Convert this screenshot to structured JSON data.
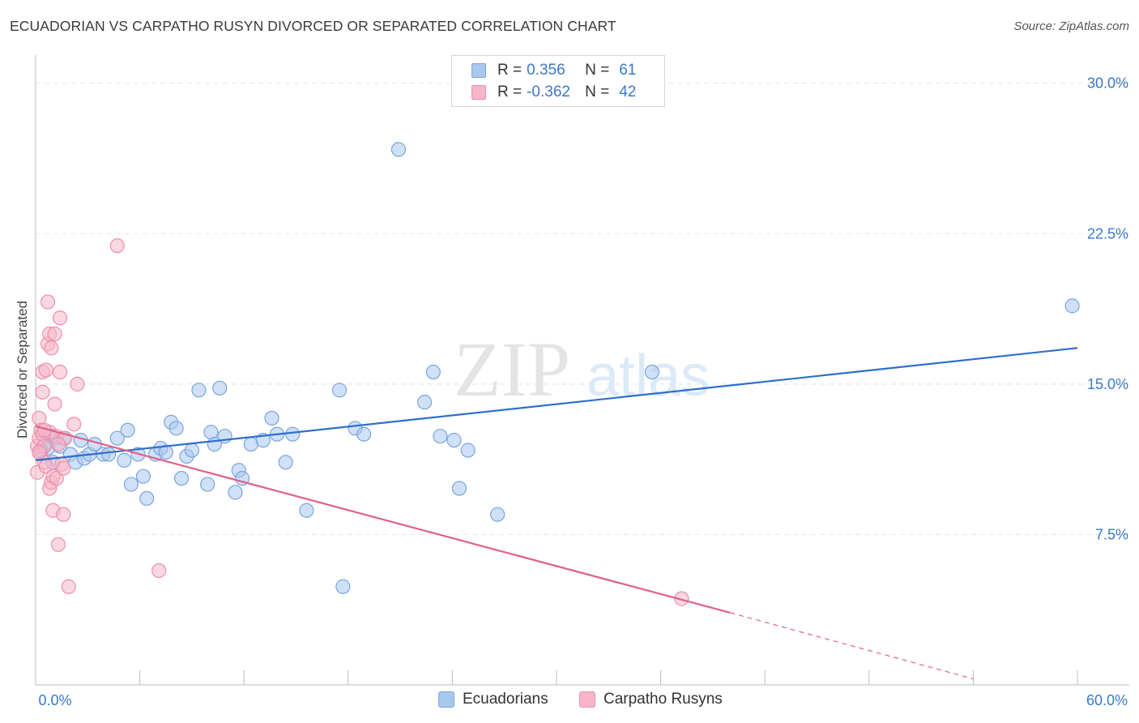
{
  "header": {
    "title": "ECUADORIAN VS CARPATHO RUSYN DIVORCED OR SEPARATED CORRELATION CHART",
    "source": "Source: ZipAtlas.com"
  },
  "legend": {
    "rows": [
      {
        "r_label": "R =",
        "r_value": "0.356",
        "n_label": "N =",
        "n_value": "61"
      },
      {
        "r_label": "R =",
        "r_value": "-0.362",
        "n_label": "N =",
        "n_value": "42"
      }
    ]
  },
  "bottom_legend": [
    "Ecuadorians",
    "Carpatho Rusyns"
  ],
  "watermark": {
    "zip": "ZIP",
    "atlas": "atlas"
  },
  "colors": {
    "blue_fill": "#a9c7ef",
    "blue_stroke": "#7aa5dc",
    "blue_line": "#2f6fcc",
    "pink_fill": "#f6b6c9",
    "pink_stroke": "#ee8eab",
    "pink_line": "#e0608a",
    "axis_label": "#3a78c8",
    "grid": "#e3e3e3"
  },
  "chart_data": {
    "type": "scatter",
    "title": "ECUADORIAN VS CARPATHO RUSYN DIVORCED OR SEPARATED CORRELATION CHART",
    "xlabel": "",
    "ylabel": "Divorced or Separated",
    "xlim": [
      0,
      60
    ],
    "ylim": [
      0,
      31
    ],
    "x_tick_labels": [
      "0.0%",
      "60.0%"
    ],
    "y_ticks": [
      7.5,
      15.0,
      22.5,
      30.0
    ],
    "y_tick_labels": [
      "7.5%",
      "15.0%",
      "22.5%",
      "30.0%"
    ],
    "grid": true,
    "legend_position": "top-center",
    "series": [
      {
        "name": "Ecuadorians",
        "r": 0.356,
        "n": 61,
        "trend": {
          "x": [
            0,
            60
          ],
          "y": [
            11.2,
            16.8
          ]
        },
        "points": [
          [
            0.5,
            12.0
          ],
          [
            0.7,
            11.8
          ],
          [
            0.9,
            12.4
          ],
          [
            1.0,
            11.1
          ],
          [
            1.1,
            12.3
          ],
          [
            1.4,
            11.9
          ],
          [
            1.6,
            12.3
          ],
          [
            2.0,
            11.5
          ],
          [
            2.3,
            11.1
          ],
          [
            2.6,
            12.2
          ],
          [
            2.8,
            11.3
          ],
          [
            3.1,
            11.5
          ],
          [
            3.4,
            12.0
          ],
          [
            3.9,
            11.5
          ],
          [
            4.2,
            11.5
          ],
          [
            4.7,
            12.3
          ],
          [
            5.1,
            11.2
          ],
          [
            5.3,
            12.7
          ],
          [
            5.5,
            10.0
          ],
          [
            5.9,
            11.5
          ],
          [
            6.2,
            10.4
          ],
          [
            6.4,
            9.3
          ],
          [
            6.9,
            11.5
          ],
          [
            7.2,
            11.8
          ],
          [
            7.5,
            11.6
          ],
          [
            7.8,
            13.1
          ],
          [
            8.1,
            12.8
          ],
          [
            8.4,
            10.3
          ],
          [
            8.7,
            11.4
          ],
          [
            9.0,
            11.7
          ],
          [
            9.4,
            14.7
          ],
          [
            9.9,
            10.0
          ],
          [
            10.1,
            12.6
          ],
          [
            10.3,
            12.0
          ],
          [
            10.6,
            14.8
          ],
          [
            10.9,
            12.4
          ],
          [
            11.5,
            9.6
          ],
          [
            11.7,
            10.7
          ],
          [
            11.9,
            10.3
          ],
          [
            12.4,
            12.0
          ],
          [
            13.1,
            12.2
          ],
          [
            13.6,
            13.3
          ],
          [
            13.9,
            12.5
          ],
          [
            14.4,
            11.1
          ],
          [
            14.8,
            12.5
          ],
          [
            15.6,
            8.7
          ],
          [
            17.5,
            14.7
          ],
          [
            17.7,
            4.9
          ],
          [
            18.4,
            12.8
          ],
          [
            18.9,
            12.5
          ],
          [
            20.9,
            26.7
          ],
          [
            22.4,
            14.1
          ],
          [
            22.9,
            15.6
          ],
          [
            23.3,
            12.4
          ],
          [
            24.1,
            12.2
          ],
          [
            24.4,
            9.8
          ],
          [
            24.9,
            11.7
          ],
          [
            26.6,
            8.5
          ],
          [
            35.5,
            15.6
          ],
          [
            59.7,
            18.9
          ],
          [
            0.3,
            11.7
          ]
        ]
      },
      {
        "name": "Carpatho Rusyns",
        "r": -0.362,
        "n": 42,
        "trend": {
          "x": [
            0,
            40
          ],
          "y": [
            12.9,
            3.6
          ]
        },
        "trend_dashed": {
          "x": [
            40,
            54
          ],
          "y": [
            3.6,
            0.3
          ]
        },
        "points": [
          [
            0.1,
            11.9
          ],
          [
            0.1,
            10.6
          ],
          [
            0.2,
            12.3
          ],
          [
            0.2,
            13.3
          ],
          [
            0.3,
            12.7
          ],
          [
            0.3,
            11.5
          ],
          [
            0.4,
            14.6
          ],
          [
            0.4,
            15.6
          ],
          [
            0.4,
            12.5
          ],
          [
            0.5,
            11.9
          ],
          [
            0.5,
            11.1
          ],
          [
            0.6,
            15.7
          ],
          [
            0.6,
            10.9
          ],
          [
            0.7,
            19.1
          ],
          [
            0.7,
            17.0
          ],
          [
            0.8,
            17.5
          ],
          [
            0.8,
            12.6
          ],
          [
            0.8,
            9.8
          ],
          [
            0.9,
            16.8
          ],
          [
            0.9,
            10.1
          ],
          [
            1.0,
            10.4
          ],
          [
            1.0,
            8.7
          ],
          [
            1.1,
            17.5
          ],
          [
            1.1,
            14.0
          ],
          [
            1.2,
            12.4
          ],
          [
            1.2,
            10.3
          ],
          [
            1.3,
            7.0
          ],
          [
            1.4,
            18.3
          ],
          [
            1.4,
            15.6
          ],
          [
            1.5,
            11.0
          ],
          [
            1.6,
            10.8
          ],
          [
            1.6,
            8.5
          ],
          [
            1.7,
            12.3
          ],
          [
            1.9,
            4.9
          ],
          [
            2.2,
            13.0
          ],
          [
            2.4,
            15.0
          ],
          [
            4.7,
            21.9
          ],
          [
            7.1,
            5.7
          ],
          [
            37.2,
            4.3
          ],
          [
            0.2,
            11.6
          ],
          [
            0.5,
            12.7
          ],
          [
            1.3,
            12.0
          ]
        ]
      }
    ]
  }
}
